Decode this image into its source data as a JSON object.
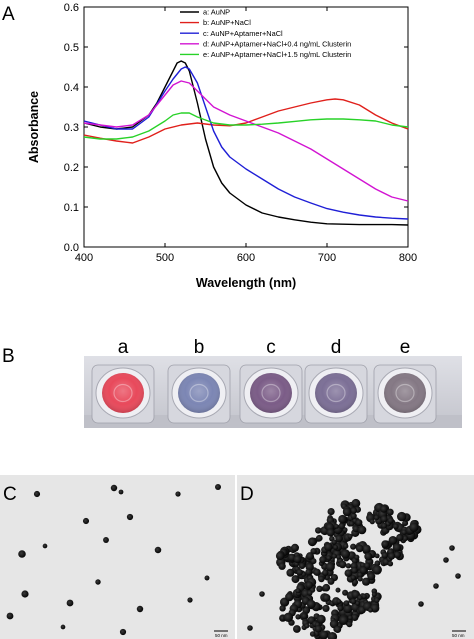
{
  "panels": {
    "a": "A",
    "b": "B",
    "c": "C",
    "d": "D"
  },
  "chart_data": {
    "type": "line",
    "xlabel": "Wavelength (nm)",
    "ylabel": "Absorbance",
    "xlim": [
      400,
      800
    ],
    "ylim": [
      0.0,
      0.6
    ],
    "xticks": [
      400,
      500,
      600,
      700,
      800
    ],
    "yticks": [
      0.0,
      0.1,
      0.2,
      0.3,
      0.4,
      0.5,
      0.6
    ],
    "ytick_labels": [
      "0.0",
      "0.1",
      "0.2",
      "0.3",
      "0.4",
      "0.5",
      "0.6"
    ],
    "grid": false,
    "legend_position": "top-right",
    "series": [
      {
        "name": "a: AuNP",
        "color": "#000000",
        "x": [
          400,
          420,
          440,
          460,
          480,
          490,
          500,
          510,
          515,
          520,
          525,
          530,
          540,
          550,
          560,
          570,
          580,
          600,
          620,
          640,
          660,
          680,
          700,
          720,
          740,
          760,
          780,
          800
        ],
        "y": [
          0.31,
          0.3,
          0.295,
          0.3,
          0.33,
          0.36,
          0.4,
          0.44,
          0.46,
          0.465,
          0.46,
          0.44,
          0.36,
          0.27,
          0.2,
          0.16,
          0.135,
          0.105,
          0.085,
          0.075,
          0.068,
          0.062,
          0.058,
          0.057,
          0.056,
          0.056,
          0.056,
          0.055
        ]
      },
      {
        "name": "b: AuNP+NaCl",
        "color": "#e0201b",
        "x": [
          400,
          420,
          440,
          460,
          480,
          500,
          520,
          540,
          560,
          580,
          600,
          620,
          640,
          660,
          680,
          700,
          710,
          720,
          740,
          760,
          780,
          800
        ],
        "y": [
          0.28,
          0.272,
          0.265,
          0.26,
          0.275,
          0.295,
          0.305,
          0.31,
          0.305,
          0.303,
          0.31,
          0.325,
          0.34,
          0.35,
          0.36,
          0.368,
          0.37,
          0.368,
          0.355,
          0.33,
          0.31,
          0.295
        ]
      },
      {
        "name": "c: AuNP+Aptamer+NaCl",
        "color": "#1f1fd6",
        "x": [
          400,
          420,
          440,
          460,
          480,
          500,
          510,
          520,
          525,
          530,
          540,
          550,
          560,
          570,
          580,
          600,
          620,
          640,
          660,
          680,
          700,
          720,
          740,
          760,
          780,
          800
        ],
        "y": [
          0.315,
          0.305,
          0.295,
          0.295,
          0.325,
          0.39,
          0.42,
          0.445,
          0.45,
          0.445,
          0.41,
          0.35,
          0.29,
          0.25,
          0.225,
          0.195,
          0.17,
          0.145,
          0.125,
          0.11,
          0.096,
          0.087,
          0.08,
          0.075,
          0.072,
          0.07
        ]
      },
      {
        "name": "d: AuNP+Aptamer+NaCl+0.4 ng/mL Clusterin",
        "color": "#d214d2",
        "x": [
          400,
          420,
          440,
          460,
          480,
          500,
          510,
          520,
          530,
          540,
          560,
          580,
          600,
          620,
          640,
          660,
          680,
          700,
          720,
          740,
          760,
          780,
          800
        ],
        "y": [
          0.31,
          0.305,
          0.3,
          0.305,
          0.33,
          0.38,
          0.405,
          0.415,
          0.41,
          0.39,
          0.35,
          0.33,
          0.315,
          0.3,
          0.285,
          0.265,
          0.245,
          0.22,
          0.195,
          0.17,
          0.145,
          0.125,
          0.115
        ]
      },
      {
        "name": "e: AuNP+Aptamer+NaCl+1.5 ng/mL Clusterin",
        "color": "#28d228",
        "x": [
          400,
          420,
          440,
          460,
          480,
          500,
          510,
          520,
          530,
          540,
          560,
          580,
          600,
          620,
          640,
          660,
          680,
          700,
          720,
          740,
          760,
          780,
          800
        ],
        "y": [
          0.275,
          0.27,
          0.27,
          0.275,
          0.29,
          0.315,
          0.33,
          0.335,
          0.335,
          0.325,
          0.31,
          0.305,
          0.305,
          0.307,
          0.31,
          0.314,
          0.318,
          0.32,
          0.32,
          0.318,
          0.315,
          0.305,
          0.3
        ]
      }
    ]
  },
  "wells": {
    "labels": [
      "a",
      "b",
      "c",
      "d",
      "e"
    ],
    "colors": [
      "#e8495b",
      "#7c86b4",
      "#7b5c87",
      "#7c6f96",
      "#847884"
    ]
  },
  "micrographs": {
    "scale_left": "50 nm",
    "scale_right": "50 nm"
  }
}
